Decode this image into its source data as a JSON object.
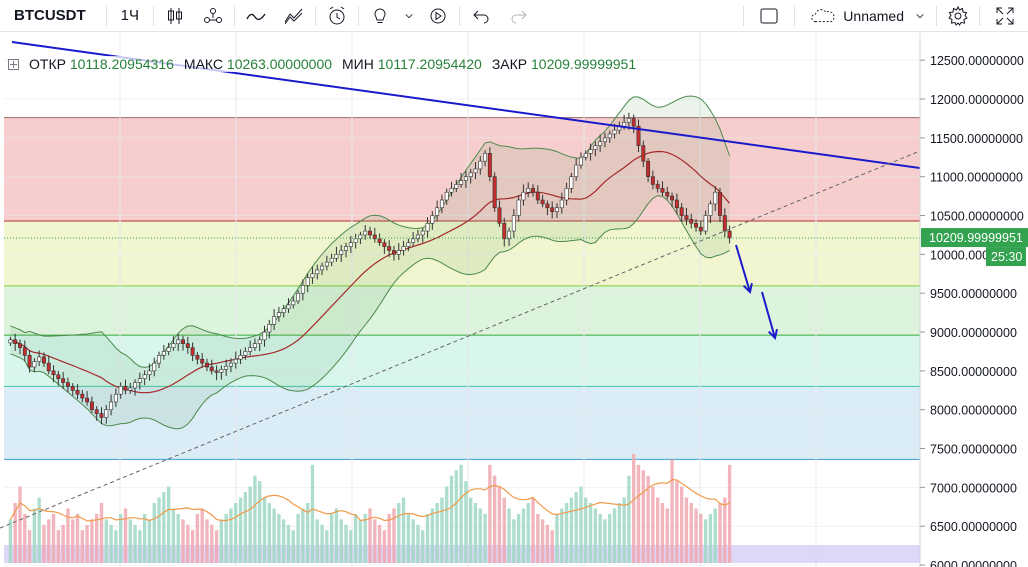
{
  "toolbar": {
    "symbol": "BTCUSDT",
    "interval": "1Ч",
    "layout_name": "Unnamed"
  },
  "legend": {
    "open_label": "ОТКР",
    "open_value": "10118.20954316",
    "high_label": "МАКС",
    "high_value": "10263.00000000",
    "low_label": "МИН",
    "low_value": "10117.20954420",
    "close_label": "ЗАКР",
    "close_value": "10209.99999951"
  },
  "price_tag": {
    "value": "10209.99999951",
    "countdown": "25:30"
  },
  "colors": {
    "up": "#26a69a",
    "down": "#ef5350",
    "trend": "#1a1acc",
    "price_tag": "#33a34f",
    "ma": "#a52a2a",
    "bands": "#4c8a4c"
  },
  "chart_data": {
    "type": "candlestick",
    "y_axis": {
      "range": [
        5975,
        12850
      ],
      "ticks": [
        12500,
        12000,
        11500,
        11000,
        10500,
        10000,
        9500,
        9000,
        8500,
        8000,
        7500,
        7000,
        6500,
        6000
      ],
      "tick_labels": [
        "12500.00000000",
        "12000.00000000",
        "11500.00000000",
        "11000.00000000",
        "10500.00000000",
        "10000.00000000",
        "9500.00000000",
        "9000.00000000",
        "8500.00000000",
        "8000.00000000",
        "7500.00000000",
        "7000.00000000",
        "6500.00000000",
        "6000.00000000"
      ]
    },
    "fib_levels": [
      11760,
      10430,
      9595,
      8960,
      8300,
      7360
    ],
    "fib_zone_colors": [
      "#f5c6c6",
      "#eef5c8",
      "#d6f2d6",
      "#d2f4ea",
      "#d3e9f5"
    ],
    "current_price": 10210,
    "closes": [
      8900,
      8850,
      8800,
      8700,
      8550,
      8620,
      8680,
      8600,
      8500,
      8450,
      8400,
      8350,
      8300,
      8250,
      8200,
      8150,
      8100,
      8000,
      7950,
      7900,
      8000,
      8100,
      8200,
      8300,
      8250,
      8280,
      8350,
      8400,
      8450,
      8500,
      8600,
      8700,
      8750,
      8800,
      8850,
      8900,
      8850,
      8800,
      8700,
      8650,
      8600,
      8550,
      8500,
      8480,
      8520,
      8560,
      8600,
      8650,
      8700,
      8750,
      8800,
      8850,
      8900,
      9000,
      9100,
      9200,
      9250,
      9300,
      9350,
      9400,
      9500,
      9600,
      9700,
      9750,
      9800,
      9850,
      9900,
      9950,
      10000,
      10050,
      10100,
      10150,
      10200,
      10250,
      10300,
      10250,
      10200,
      10150,
      10100,
      10050,
      10000,
      10050,
      10100,
      10150,
      10200,
      10250,
      10300,
      10400,
      10500,
      10600,
      10700,
      10800,
      10850,
      10900,
      10950,
      11000,
      11050,
      11100,
      11200,
      11300,
      11000,
      10600,
      10400,
      10200,
      10300,
      10500,
      10700,
      10800,
      10850,
      10800,
      10700,
      10650,
      10600,
      10550,
      10600,
      10700,
      10850,
      11000,
      11150,
      11250,
      11300,
      11350,
      11400,
      11450,
      11500,
      11550,
      11600,
      11650,
      11700,
      11750,
      11650,
      11400,
      11200,
      11000,
      10900,
      10850,
      10800,
      10750,
      10700,
      10600,
      10500,
      10450,
      10400,
      10350,
      10300,
      10500,
      10650,
      10800,
      10500,
      10300,
      10210
    ],
    "volumes": [
      40,
      55,
      70,
      45,
      30,
      50,
      60,
      35,
      40,
      45,
      30,
      35,
      50,
      40,
      45,
      30,
      35,
      40,
      45,
      55,
      40,
      35,
      30,
      45,
      50,
      40,
      35,
      30,
      45,
      40,
      55,
      60,
      65,
      70,
      50,
      45,
      40,
      35,
      30,
      45,
      50,
      40,
      35,
      30,
      40,
      45,
      50,
      55,
      60,
      65,
      70,
      80,
      75,
      60,
      55,
      50,
      45,
      40,
      35,
      30,
      45,
      50,
      55,
      90,
      40,
      35,
      30,
      45,
      50,
      40,
      35,
      30,
      45,
      40,
      45,
      50,
      40,
      35,
      30,
      45,
      50,
      55,
      60,
      45,
      40,
      35,
      30,
      45,
      50,
      55,
      60,
      70,
      80,
      85,
      90,
      75,
      60,
      55,
      50,
      45,
      90,
      80,
      70,
      60,
      50,
      40,
      45,
      50,
      55,
      60,
      45,
      40,
      35,
      30,
      45,
      50,
      55,
      60,
      65,
      70,
      60,
      55,
      50,
      45,
      40,
      45,
      50,
      55,
      60,
      80,
      100,
      90,
      85,
      80,
      70,
      60,
      55,
      50,
      95,
      75,
      70,
      60,
      55,
      50,
      45,
      40,
      45,
      50,
      55,
      60,
      90
    ],
    "vol_axis_max": 110
  }
}
